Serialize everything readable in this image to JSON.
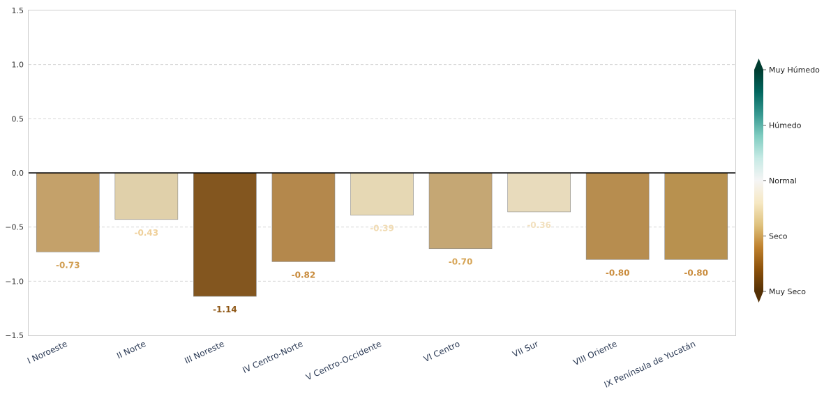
{
  "chart_data": {
    "type": "bar",
    "categories": [
      "I Noroeste",
      "II Norte",
      "III Noreste",
      "IV Centro-Norte",
      "V Centro-Occidente",
      "VI Centro",
      "VII Sur",
      "VIII Oriente",
      "IX Península de Yucatán"
    ],
    "values": [
      -0.73,
      -0.43,
      -1.14,
      -0.82,
      -0.39,
      -0.7,
      -0.36,
      -0.8,
      -0.8
    ],
    "data_labels": [
      "-0.73",
      "-0.43",
      "-1.14",
      "-0.82",
      "-0.39",
      "-0.70",
      "-0.36",
      "-0.80",
      "-0.80"
    ],
    "bar_colors": [
      "#c4a16a",
      "#e0d0aa",
      "#83561f",
      "#b4884c",
      "#e6d8b4",
      "#c5a774",
      "#e8dbbc",
      "#b78d4f",
      "#b8914f"
    ],
    "label_colors": [
      "#d19e52",
      "#efd09a",
      "#8f5817",
      "#c88a3a",
      "#f1dcb4",
      "#d6a455",
      "#f2e0be",
      "#c98b3b",
      "#c98b3b"
    ],
    "ylim": [
      -1.5,
      1.5
    ],
    "yticks": [
      -1.5,
      -1.0,
      -0.5,
      0.0,
      0.5,
      1.0,
      1.5
    ],
    "ytick_labels": [
      "−1.5",
      "−1.0",
      "−0.5",
      "0.0",
      "0.5",
      "1.0",
      "1.5"
    ],
    "grid": "horizontal-dashed",
    "title": "",
    "xlabel": "",
    "ylabel": "",
    "colorbar": {
      "placement": "right",
      "range": [
        -2,
        2
      ],
      "ticks": [
        {
          "value": 2,
          "label": "Muy Húmedo"
        },
        {
          "value": 1,
          "label": "Húmedo"
        },
        {
          "value": 0,
          "label": "Normal"
        },
        {
          "value": -1,
          "label": "Seco"
        },
        {
          "value": -2,
          "label": "Muy Seco"
        }
      ],
      "colormap": [
        "#543005",
        "#8c510a",
        "#bf812d",
        "#dfc27d",
        "#f6e8c3",
        "#f5f5f5",
        "#c7eae5",
        "#80cdc1",
        "#35978f",
        "#01665e",
        "#003c30"
      ]
    }
  }
}
